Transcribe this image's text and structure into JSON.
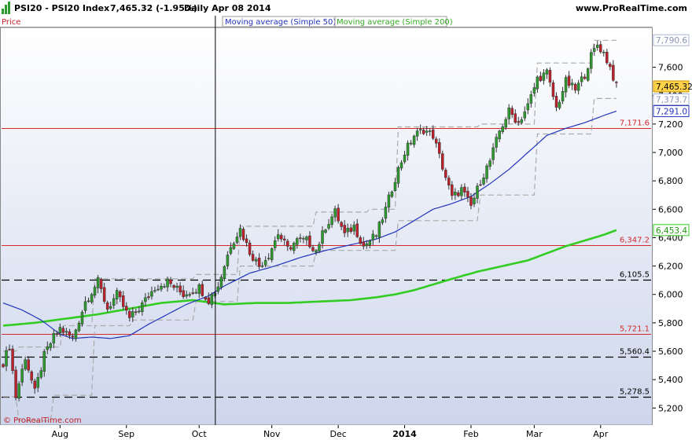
{
  "header": {
    "symbol": "PSI20 - PSI20 Index",
    "last": "7,465.32 (-1.95%)",
    "period": "Daily  Apr 08 2014",
    "site": "www.ProRealTime.com"
  },
  "legend": {
    "price": "Price",
    "ma50": "Moving average (Simple 50)",
    "ma200": "Moving average (Simple 200)"
  },
  "footer": {
    "copyright": "© ProRealTime.com"
  },
  "colors": {
    "up": "#2e9b2e",
    "down": "#c0202a",
    "ma50": "#2233bb",
    "ma200": "#33cc22",
    "resistance": "#d42a2a",
    "support": "#000000",
    "envelope": "#aaaaaa",
    "plot_bg_top": "#ffffff",
    "plot_bg_bottom": "#cdd6ec"
  },
  "chart_data": {
    "type": "candlestick",
    "ylim": [
      5080,
      7880
    ],
    "y_ticks": [
      5200,
      5400,
      5600,
      5800,
      6000,
      6200,
      6400,
      6600,
      6800,
      7000,
      7200,
      7400,
      7600
    ],
    "y_tick_labels": [
      "5,200",
      "5,400",
      "5,600",
      "5,800",
      "6,000",
      "6,200",
      "6,400",
      "6,600",
      "6,800",
      "7,000",
      "7,200",
      "7,400",
      "7,600"
    ],
    "x_labels": [
      {
        "label": "Aug",
        "day": 18
      },
      {
        "label": "Sep",
        "day": 39
      },
      {
        "label": "Oct",
        "day": 62
      },
      {
        "label": "Nov",
        "day": 85
      },
      {
        "label": "Dec",
        "day": 106
      },
      {
        "label": "2014",
        "day": 127
      },
      {
        "label": "Feb",
        "day": 148
      },
      {
        "label": "Mar",
        "day": 168
      },
      {
        "label": "Apr",
        "day": 189
      }
    ],
    "cursor_day": 67,
    "n_days": 195,
    "price_anchors": [
      [
        0,
        5520
      ],
      [
        2,
        5640
      ],
      [
        4,
        5280
      ],
      [
        7,
        5560
      ],
      [
        10,
        5310
      ],
      [
        13,
        5570
      ],
      [
        16,
        5700
      ],
      [
        18,
        5760
      ],
      [
        22,
        5690
      ],
      [
        26,
        5950
      ],
      [
        30,
        6090
      ],
      [
        33,
        5900
      ],
      [
        36,
        6000
      ],
      [
        40,
        5830
      ],
      [
        43,
        5900
      ],
      [
        48,
        6050
      ],
      [
        52,
        6090
      ],
      [
        57,
        6000
      ],
      [
        62,
        6050
      ],
      [
        65,
        5960
      ],
      [
        68,
        6060
      ],
      [
        72,
        6350
      ],
      [
        75,
        6460
      ],
      [
        78,
        6300
      ],
      [
        81,
        6200
      ],
      [
        84,
        6280
      ],
      [
        87,
        6430
      ],
      [
        90,
        6320
      ],
      [
        93,
        6380
      ],
      [
        96,
        6380
      ],
      [
        99,
        6310
      ],
      [
        102,
        6480
      ],
      [
        105,
        6580
      ],
      [
        108,
        6420
      ],
      [
        111,
        6480
      ],
      [
        114,
        6340
      ],
      [
        118,
        6420
      ],
      [
        121,
        6600
      ],
      [
        124,
        6820
      ],
      [
        127,
        7000
      ],
      [
        130,
        7120
      ],
      [
        133,
        7160
      ],
      [
        136,
        7120
      ],
      [
        139,
        6900
      ],
      [
        142,
        6680
      ],
      [
        145,
        6740
      ],
      [
        148,
        6620
      ],
      [
        151,
        6800
      ],
      [
        154,
        6940
      ],
      [
        157,
        7150
      ],
      [
        160,
        7290
      ],
      [
        163,
        7210
      ],
      [
        166,
        7330
      ],
      [
        169,
        7520
      ],
      [
        172,
        7560
      ],
      [
        175,
        7310
      ],
      [
        178,
        7500
      ],
      [
        181,
        7440
      ],
      [
        184,
        7550
      ],
      [
        186,
        7680
      ],
      [
        188,
        7760
      ],
      [
        190,
        7700
      ],
      [
        192,
        7600
      ],
      [
        194,
        7465
      ]
    ],
    "ma50_anchors": [
      [
        0,
        5940
      ],
      [
        6,
        5890
      ],
      [
        12,
        5820
      ],
      [
        18,
        5720
      ],
      [
        22,
        5690
      ],
      [
        28,
        5700
      ],
      [
        34,
        5690
      ],
      [
        40,
        5710
      ],
      [
        46,
        5790
      ],
      [
        52,
        5860
      ],
      [
        58,
        5930
      ],
      [
        65,
        5990
      ],
      [
        70,
        6060
      ],
      [
        78,
        6150
      ],
      [
        86,
        6200
      ],
      [
        94,
        6260
      ],
      [
        102,
        6310
      ],
      [
        110,
        6350
      ],
      [
        118,
        6390
      ],
      [
        124,
        6440
      ],
      [
        130,
        6520
      ],
      [
        136,
        6600
      ],
      [
        142,
        6640
      ],
      [
        148,
        6690
      ],
      [
        154,
        6780
      ],
      [
        160,
        6880
      ],
      [
        166,
        7000
      ],
      [
        172,
        7120
      ],
      [
        178,
        7170
      ],
      [
        184,
        7210
      ],
      [
        190,
        7260
      ],
      [
        194,
        7291
      ]
    ],
    "ma200_anchors": [
      [
        0,
        5780
      ],
      [
        10,
        5800
      ],
      [
        20,
        5830
      ],
      [
        30,
        5860
      ],
      [
        40,
        5900
      ],
      [
        50,
        5940
      ],
      [
        60,
        5960
      ],
      [
        70,
        5930
      ],
      [
        80,
        5940
      ],
      [
        90,
        5940
      ],
      [
        100,
        5950
      ],
      [
        110,
        5960
      ],
      [
        118,
        5980
      ],
      [
        124,
        6000
      ],
      [
        130,
        6030
      ],
      [
        136,
        6070
      ],
      [
        142,
        6110
      ],
      [
        150,
        6160
      ],
      [
        158,
        6200
      ],
      [
        166,
        6240
      ],
      [
        172,
        6290
      ],
      [
        178,
        6340
      ],
      [
        184,
        6380
      ],
      [
        190,
        6420
      ],
      [
        194,
        6453
      ]
    ],
    "envelope_upper": [
      [
        0,
        5600
      ],
      [
        4,
        5600
      ],
      [
        5,
        5630
      ],
      [
        18,
        5630
      ],
      [
        19,
        5780
      ],
      [
        28,
        5780
      ],
      [
        29,
        6110
      ],
      [
        40,
        6110
      ],
      [
        41,
        6110
      ],
      [
        60,
        6110
      ],
      [
        61,
        6140
      ],
      [
        74,
        6140
      ],
      [
        75,
        6480
      ],
      [
        98,
        6480
      ],
      [
        99,
        6580
      ],
      [
        115,
        6580
      ],
      [
        116,
        6600
      ],
      [
        124,
        6600
      ],
      [
        125,
        7180
      ],
      [
        150,
        7180
      ],
      [
        151,
        7200
      ],
      [
        168,
        7200
      ],
      [
        169,
        7630
      ],
      [
        186,
        7630
      ],
      [
        187,
        7790
      ],
      [
        194,
        7790
      ]
    ],
    "envelope_lower": [
      [
        0,
        5280
      ],
      [
        4,
        5280
      ],
      [
        5,
        5110
      ],
      [
        15,
        5110
      ],
      [
        16,
        5290
      ],
      [
        28,
        5290
      ],
      [
        29,
        5780
      ],
      [
        40,
        5780
      ],
      [
        41,
        5820
      ],
      [
        60,
        5820
      ],
      [
        61,
        5950
      ],
      [
        74,
        5950
      ],
      [
        75,
        6200
      ],
      [
        98,
        6200
      ],
      [
        99,
        6310
      ],
      [
        124,
        6310
      ],
      [
        125,
        6520
      ],
      [
        150,
        6520
      ],
      [
        151,
        6700
      ],
      [
        168,
        6700
      ],
      [
        169,
        7130
      ],
      [
        186,
        7130
      ],
      [
        187,
        7380
      ],
      [
        194,
        7380
      ]
    ],
    "levels": [
      {
        "value": 7171.6,
        "label": "7,171.6",
        "style": "solid",
        "color": "#d42a2a"
      },
      {
        "value": 6347.2,
        "label": "6,347.2",
        "style": "solid",
        "color": "#d42a2a"
      },
      {
        "value": 6105.5,
        "label": "6,105.5",
        "style": "dashed",
        "color": "#000000"
      },
      {
        "value": 5721.1,
        "label": "5,721.1",
        "style": "solid",
        "color": "#d42a2a"
      },
      {
        "value": 5560.4,
        "label": "5,560.4",
        "style": "dashed",
        "color": "#000000"
      },
      {
        "value": 5278.5,
        "label": "5,278.5",
        "style": "dashed",
        "color": "#000000"
      }
    ],
    "value_tags": [
      {
        "value": 7790.6,
        "label": "7,790.6",
        "bg": "#ffffff",
        "border": "#aab4d4",
        "color": "#8894b8"
      },
      {
        "value": 7465.32,
        "label": "7,465.32",
        "bg": "#ffd24a",
        "border": "#c89600",
        "color": "#000000"
      },
      {
        "value": 7373.7,
        "label": "7,373.7",
        "bg": "#ffffff",
        "border": "#aab4d4",
        "color": "#8894b8"
      },
      {
        "value": 7291.0,
        "label": "7,291.0",
        "bg": "#ffffff",
        "border": "#2233bb",
        "color": "#2233bb"
      },
      {
        "value": 6453.4,
        "label": "6,453.4",
        "bg": "#ffffff",
        "border": "#33cc22",
        "color": "#229911"
      }
    ]
  }
}
